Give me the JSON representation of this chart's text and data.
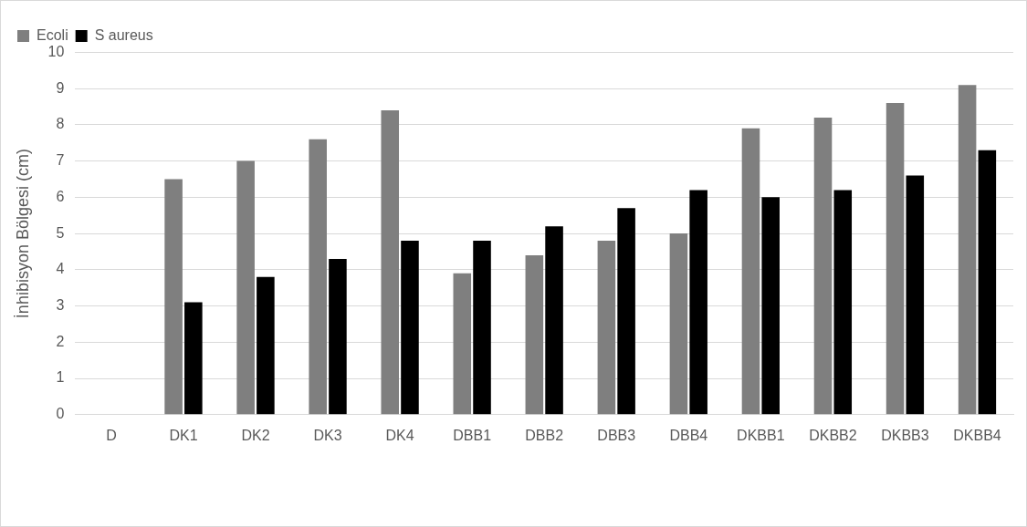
{
  "chart_data": {
    "type": "bar",
    "ylabel": "İnhibisyon Bölgesi (cm)",
    "categories": [
      "D",
      "DK1",
      "DK2",
      "DK3",
      "DK4",
      "DBB1",
      "DBB2",
      "DBB3",
      "DBB4",
      "DKBB1",
      "DKBB2",
      "DKBB3",
      "DKBB4"
    ],
    "series": [
      {
        "name": "Ecoli",
        "color": "#7f7f7f",
        "values": [
          0,
          6.5,
          7.0,
          7.6,
          8.4,
          3.9,
          4.4,
          4.8,
          5.0,
          7.9,
          8.2,
          8.6,
          9.1
        ]
      },
      {
        "name": "S aureus",
        "color": "#000000",
        "values": [
          0,
          3.1,
          3.8,
          4.3,
          4.8,
          4.8,
          5.2,
          5.7,
          6.2,
          6.0,
          6.2,
          6.6,
          7.3
        ]
      }
    ],
    "ylim": [
      0,
      10
    ],
    "yticks": [
      0,
      1,
      2,
      3,
      4,
      5,
      6,
      7,
      8,
      9,
      10
    ],
    "grid": "y",
    "legend": "top left"
  }
}
